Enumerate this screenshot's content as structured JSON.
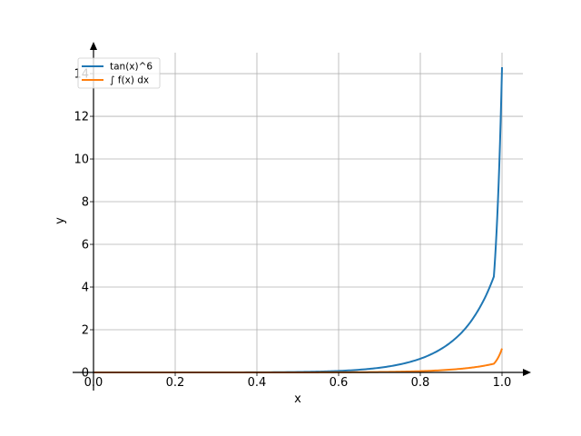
{
  "chart_data": {
    "type": "line",
    "title": "",
    "xlabel": "x",
    "ylabel": "y",
    "xlim": [
      0.0,
      1.0
    ],
    "ylim": [
      0,
      14.3
    ],
    "xticks": [
      "0.0",
      "0.2",
      "0.4",
      "0.6",
      "0.8",
      "1.0"
    ],
    "yticks": [
      "0",
      "2",
      "4",
      "6",
      "8",
      "10",
      "12",
      "14"
    ],
    "grid": true,
    "legend_position": "top-left",
    "x": [
      0.0,
      0.1,
      0.2,
      0.3,
      0.4,
      0.5,
      0.55,
      0.6,
      0.65,
      0.7,
      0.75,
      0.8,
      0.85,
      0.9,
      0.92,
      0.94,
      0.96,
      0.98,
      1.0
    ],
    "series": [
      {
        "name": "tan(x)^6",
        "color": "#1f77b4",
        "values": [
          0.0,
          1e-06,
          6.8e-05,
          0.00082,
          0.0048,
          0.0193,
          0.0374,
          0.0695,
          0.125,
          0.219,
          0.378,
          0.643,
          1.089,
          1.844,
          2.29,
          2.86,
          3.57,
          4.49,
          14.3
        ]
      },
      {
        "name": "∫ f(x) dx",
        "color": "#ff7f0e",
        "values": [
          0.0,
          0.0,
          2e-06,
          2.9e-05,
          0.00025,
          0.00126,
          0.0027,
          0.0054,
          0.0102,
          0.0186,
          0.0333,
          0.0584,
          0.101,
          0.172,
          0.212,
          0.263,
          0.327,
          0.406,
          1.12
        ]
      }
    ]
  }
}
